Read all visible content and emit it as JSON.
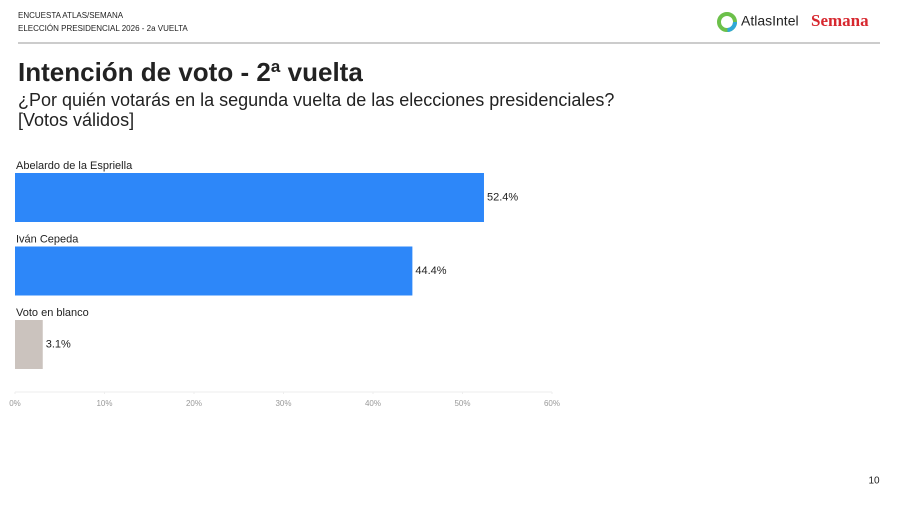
{
  "header": {
    "lines": [
      "ENCUESTA ATLAS/SEMANA",
      "ELECCIÓN PRESIDENCIAL 2026 - 2a VUELTA"
    ],
    "logos": [
      "AtlasIntel",
      "Semana"
    ]
  },
  "page_number": "10",
  "chart_data": {
    "type": "hbar",
    "title": "Intención de voto - 2ª vuelta",
    "subtitle": [
      "¿Por quién votarás en la segunda vuelta de las elecciones presidenciales?",
      "[Votos válidos]"
    ],
    "categories": [
      "Abelardo de la Espriella",
      "Iván Cepeda",
      "Voto en blanco"
    ],
    "values": [
      52.4,
      44.4,
      3.1
    ],
    "value_labels": [
      "52.4%",
      "44.4%",
      "3.1%"
    ],
    "colors": [
      "#2d87f9",
      "#2d87f9",
      "#cbc3be"
    ],
    "xlim": [
      0,
      60
    ],
    "xticks": [
      {
        "value": 0,
        "label": "0%"
      },
      {
        "value": 10,
        "label": "10%"
      },
      {
        "value": 20,
        "label": "20%"
      },
      {
        "value": 30,
        "label": "30%"
      },
      {
        "value": 40,
        "label": "40%"
      },
      {
        "value": 50,
        "label": "50%"
      },
      {
        "value": 60,
        "label": "60%"
      }
    ]
  }
}
